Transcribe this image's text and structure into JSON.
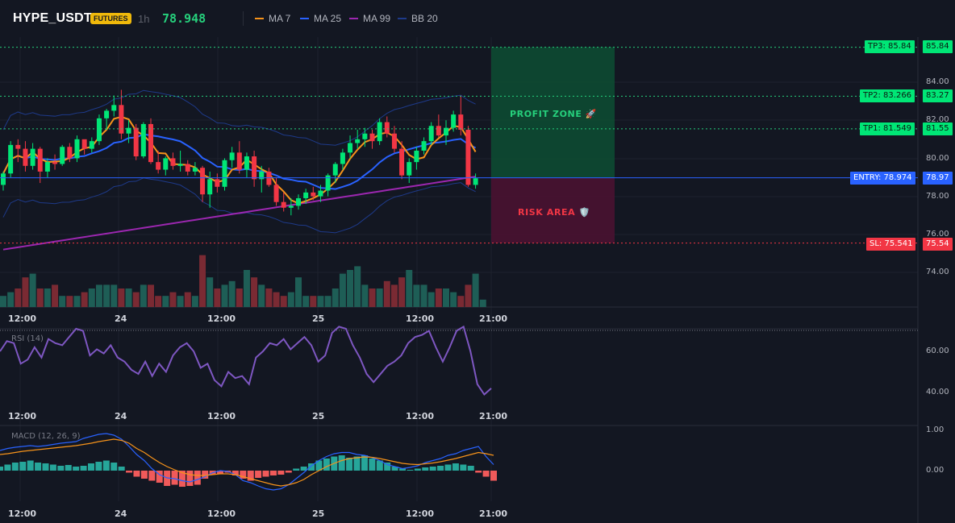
{
  "header": {
    "symbol": "HYPE_USDT",
    "badge": "FUTURES",
    "interval": "1h",
    "last_price": "78.948",
    "indicators": [
      {
        "label": "MA 7",
        "color": "#f7931a"
      },
      {
        "label": "MA 25",
        "color": "#2962ff"
      },
      {
        "label": "MA 99",
        "color": "#9c27b0"
      },
      {
        "label": "BB 20",
        "color": "#1e3a8a"
      }
    ]
  },
  "colors": {
    "up": "#26a69a",
    "up_bright": "#00e676",
    "down": "#f23645",
    "profit_zone": "#0d4a32",
    "risk_zone": "#4a1231",
    "entry": "#2962ff"
  },
  "price_levels": {
    "tp3": {
      "tag": "TP3: 85.84",
      "axis": "85.84",
      "value": 85.84
    },
    "tp2": {
      "tag": "TP2: 83.266",
      "axis": "83.27",
      "value": 83.266
    },
    "tp1": {
      "tag": "TP1: 81.549",
      "axis": "81.55",
      "value": 81.549
    },
    "entry": {
      "tag": "ENTRY: 78.974",
      "axis": "78.97",
      "value": 78.974
    },
    "sl": {
      "tag": "SL: 75.541",
      "axis": "75.54",
      "value": 75.541
    }
  },
  "zones": {
    "profit_label": "PROFIT ZONE 🚀",
    "risk_label": "RISK AREA 🛡️"
  },
  "price_axis": [
    "84.00",
    "82.00",
    "80.00",
    "78.00",
    "76.00",
    "74.00"
  ],
  "time_axis": [
    "12:00",
    "24",
    "12:00",
    "25",
    "12:00",
    "21:00"
  ],
  "rsi": {
    "title": "RSI (14)",
    "axis": [
      "60.00",
      "40.00"
    ],
    "values": [
      60,
      65,
      64,
      54,
      56,
      62,
      57,
      66,
      64,
      63,
      67,
      71,
      70,
      58,
      61,
      59,
      63,
      57,
      55,
      51,
      49,
      55,
      48,
      54,
      50,
      58,
      62,
      64,
      60,
      52,
      54,
      46,
      43,
      50,
      47,
      48,
      44,
      57,
      60,
      64,
      63,
      66,
      61,
      64,
      67,
      63,
      55,
      58,
      69,
      72,
      71,
      63,
      57,
      49,
      45,
      49,
      53,
      55,
      58,
      64,
      67,
      68,
      70,
      62,
      55,
      62,
      70,
      72,
      60,
      44,
      39,
      42
    ]
  },
  "macd": {
    "title": "MACD (12, 26, 9)",
    "axis": [
      "1.00",
      "0.00"
    ],
    "histogram": [
      0.1,
      0.15,
      0.2,
      0.22,
      0.25,
      0.2,
      0.18,
      0.15,
      0.12,
      0.14,
      0.1,
      0.12,
      0.18,
      0.22,
      0.25,
      0.2,
      0.1,
      -0.05,
      -0.15,
      -0.2,
      -0.25,
      -0.3,
      -0.38,
      -0.35,
      -0.4,
      -0.38,
      -0.35,
      -0.2,
      -0.1,
      -0.08,
      -0.05,
      -0.12,
      -0.2,
      -0.25,
      -0.18,
      -0.15,
      -0.12,
      -0.1,
      -0.05,
      0.05,
      0.1,
      0.18,
      0.25,
      0.3,
      0.35,
      0.38,
      0.32,
      0.35,
      0.38,
      0.3,
      0.25,
      0.2,
      0.1,
      0.05,
      0.02,
      0.05,
      0.08,
      0.1,
      0.12,
      0.15,
      0.18,
      0.15,
      0.12,
      -0.05,
      -0.15,
      -0.25
    ],
    "macd_line": [
      0.5,
      0.55,
      0.58,
      0.6,
      0.62,
      0.6,
      0.62,
      0.65,
      0.68,
      0.7,
      0.72,
      0.8,
      0.85,
      0.9,
      0.92,
      0.88,
      0.78,
      0.6,
      0.4,
      0.25,
      0.05,
      -0.1,
      -0.18,
      -0.2,
      -0.25,
      -0.28,
      -0.22,
      -0.15,
      -0.05,
      0.0,
      -0.02,
      -0.1,
      -0.25,
      -0.3,
      -0.38,
      -0.45,
      -0.48,
      -0.45,
      -0.35,
      -0.2,
      -0.05,
      0.12,
      0.25,
      0.35,
      0.42,
      0.45,
      0.45,
      0.4,
      0.38,
      0.32,
      0.25,
      0.15,
      0.1,
      0.05,
      0.08,
      0.12,
      0.2,
      0.25,
      0.3,
      0.38,
      0.42,
      0.5,
      0.55,
      0.6,
      0.35,
      0.15
    ],
    "signal_line": [
      0.4,
      0.42,
      0.45,
      0.48,
      0.5,
      0.52,
      0.54,
      0.56,
      0.58,
      0.6,
      0.62,
      0.65,
      0.68,
      0.72,
      0.75,
      0.78,
      0.75,
      0.68,
      0.55,
      0.45,
      0.32,
      0.2,
      0.1,
      0.02,
      -0.05,
      -0.1,
      -0.12,
      -0.12,
      -0.1,
      -0.08,
      -0.08,
      -0.1,
      -0.15,
      -0.2,
      -0.25,
      -0.3,
      -0.35,
      -0.38,
      -0.35,
      -0.3,
      -0.22,
      -0.1,
      0.0,
      0.1,
      0.18,
      0.25,
      0.3,
      0.32,
      0.34,
      0.33,
      0.3,
      0.26,
      0.22,
      0.18,
      0.16,
      0.15,
      0.17,
      0.19,
      0.22,
      0.26,
      0.3,
      0.35,
      0.4,
      0.45,
      0.42,
      0.38
    ]
  }
}
